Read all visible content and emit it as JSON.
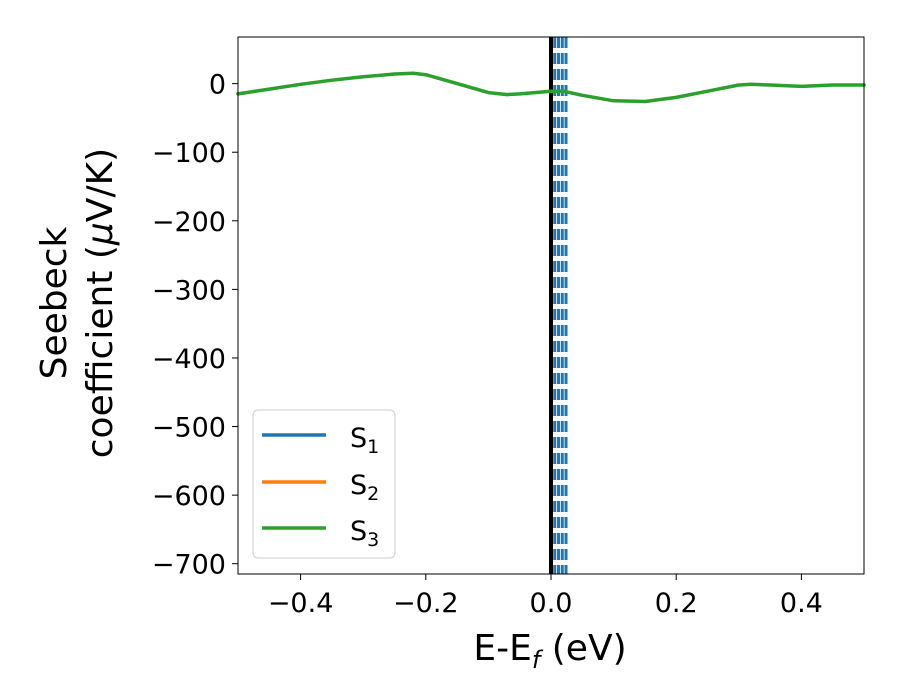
{
  "chart_data": {
    "type": "line",
    "xlabel": {
      "main": "E-E",
      "sub": "f",
      "suffix": " (eV)"
    },
    "ylabel": {
      "line1": "Seebeck",
      "line2_prefix": "coefficient  (",
      "line2_mu": "μ",
      "line2_suffix": "V/K)"
    },
    "xlim": [
      -0.5,
      0.5
    ],
    "ylim": [
      -715,
      68
    ],
    "x_ticks": [
      -0.4,
      -0.2,
      0.0,
      0.2,
      0.4
    ],
    "x_tick_labels": [
      "−0.4",
      "−0.2",
      "0.0",
      "0.2",
      "0.4"
    ],
    "y_ticks": [
      0,
      -100,
      -200,
      -300,
      -400,
      -500,
      -600,
      -700
    ],
    "y_tick_labels": [
      "0",
      "−100",
      "−200",
      "−300",
      "−400",
      "−500",
      "−600",
      "−700"
    ],
    "grid": false,
    "legend_position": "lower-left",
    "series": [
      {
        "name": "S",
        "sub": "1",
        "color": "#1f77b4",
        "x": [],
        "y": []
      },
      {
        "name": "S",
        "sub": "2",
        "color": "#ff7f0e",
        "x": [],
        "y": []
      },
      {
        "name": "S",
        "sub": "3",
        "color": "#2ca02c",
        "x": [
          -0.5,
          -0.45,
          -0.4,
          -0.35,
          -0.3,
          -0.25,
          -0.22,
          -0.2,
          -0.15,
          -0.1,
          -0.07,
          -0.05,
          0.0,
          0.02,
          0.05,
          0.1,
          0.15,
          0.2,
          0.25,
          0.3,
          0.32,
          0.35,
          0.4,
          0.45,
          0.5
        ],
        "y": [
          -15,
          -8,
          -1,
          5,
          10,
          14,
          15,
          13,
          0,
          -13,
          -16,
          -15,
          -11,
          -11,
          -17,
          -25,
          -26,
          -20,
          -11,
          -2,
          -1,
          -2,
          -4,
          -2,
          -2
        ]
      }
    ],
    "vertical_lines": [
      {
        "x": 0.0,
        "color": "#000000",
        "style": "solid"
      },
      {
        "x": 0.006,
        "color": "#1f77b4",
        "style": "dashed"
      },
      {
        "x": 0.012,
        "color": "#1f77b4",
        "style": "dashed"
      },
      {
        "x": 0.018,
        "color": "#1f77b4",
        "style": "dashed"
      },
      {
        "x": 0.024,
        "color": "#1f77b4",
        "style": "dashed"
      }
    ]
  }
}
